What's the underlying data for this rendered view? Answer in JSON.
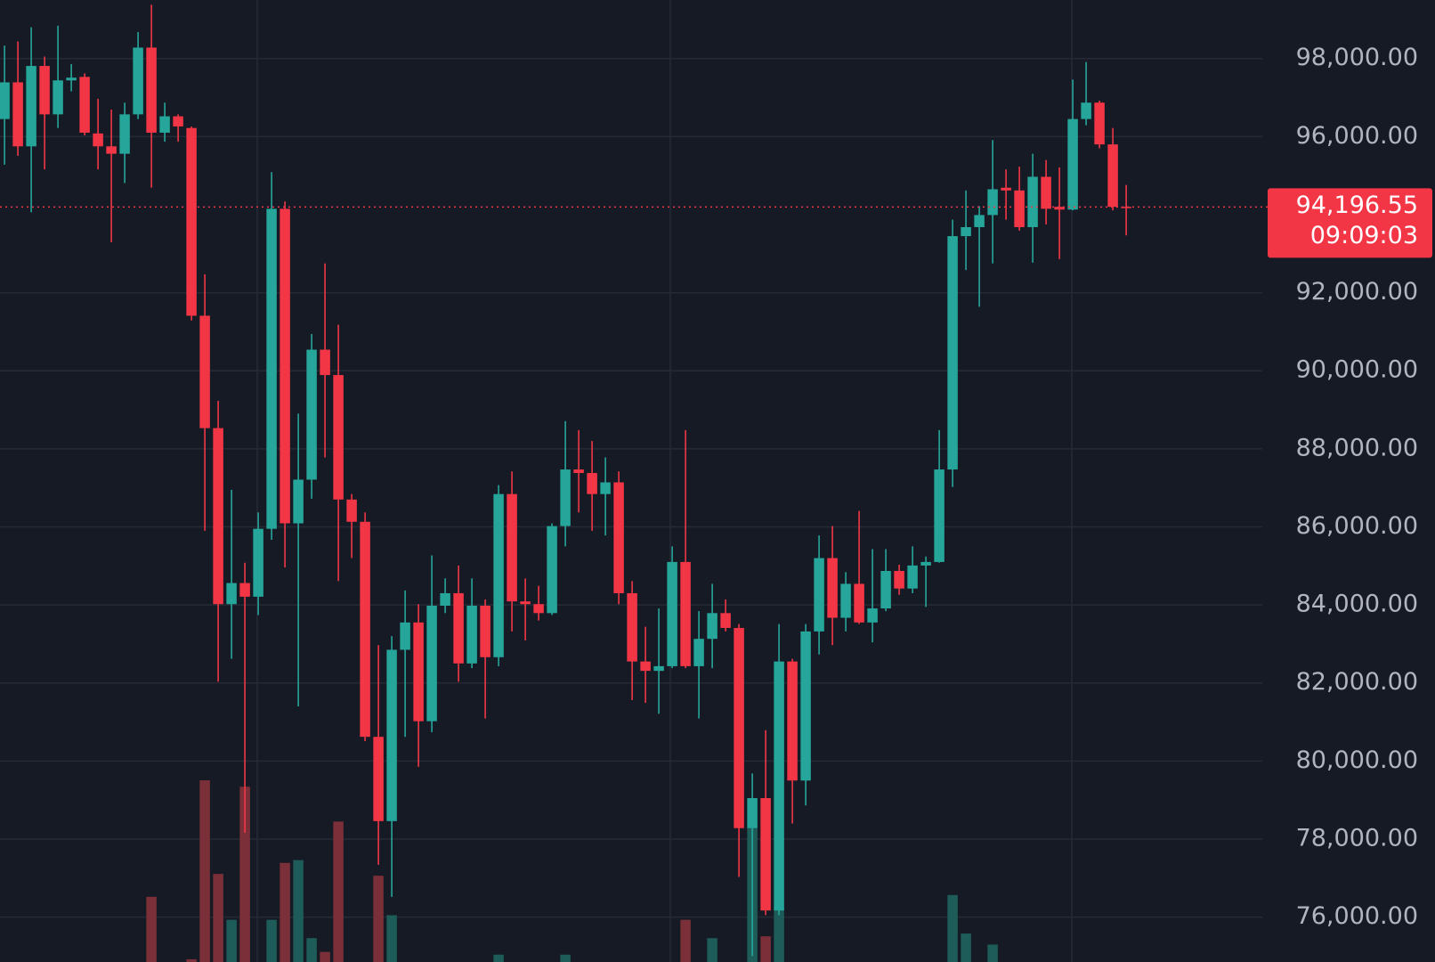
{
  "chart_data": {
    "type": "candlestick",
    "open": [
      96450,
      97390,
      95750,
      97810,
      96570,
      97440,
      97530,
      96080,
      95750,
      95560,
      96570,
      98280,
      96100,
      96520,
      96220,
      91410,
      88530,
      84020,
      84560,
      84210,
      85950,
      94150,
      86090,
      87210,
      90540,
      89890,
      86700,
      86130,
      80620,
      78460,
      82850,
      83550,
      81020,
      83980,
      84300,
      82500,
      83980,
      82660,
      86840,
      84090,
      84020,
      83790,
      86020,
      87470,
      87380,
      86840,
      87140,
      84300,
      82550,
      82310,
      82430,
      85100,
      82430,
      83130,
      83790,
      83410,
      78280,
      79050,
      76170,
      82550,
      79500,
      83320,
      85200,
      83670,
      84540,
      83550,
      83910,
      84870,
      84420,
      85010,
      85100,
      87470,
      93450,
      93680,
      93990,
      94690,
      94620,
      93680,
      94970,
      94200,
      94130,
      96450,
      96870,
      95800,
      94200
    ],
    "high": [
      98330,
      98440,
      98800,
      98050,
      98840,
      97860,
      97620,
      96970,
      96690,
      96870,
      98680,
      99380,
      96870,
      96570,
      96260,
      92470,
      89230,
      86950,
      85080,
      86370,
      95090,
      94340,
      88900,
      90940,
      92750,
      91180,
      86840,
      86370,
      82970,
      83200,
      84370,
      84020,
      85270,
      84680,
      85010,
      84680,
      84140,
      87070,
      87420,
      84680,
      84490,
      86090,
      88710,
      88480,
      88200,
      87780,
      87420,
      84610,
      83440,
      83910,
      85500,
      88480,
      83840,
      84540,
      84140,
      83510,
      79680,
      80790,
      83510,
      82620,
      83510,
      85780,
      86020,
      84840,
      86410,
      85430,
      85430,
      85030,
      85500,
      85240,
      88480,
      93870,
      94620,
      94220,
      95910,
      95160,
      95230,
      95560,
      95400,
      95210,
      97460,
      97910,
      96920,
      96220,
      94760
    ],
    "low": [
      95280,
      95510,
      94060,
      95160,
      96220,
      97160,
      96030,
      95160,
      93290,
      94810,
      96450,
      94690,
      95870,
      95870,
      91290,
      85900,
      82030,
      82620,
      78160,
      83740,
      85670,
      84960,
      81400,
      86720,
      87780,
      84610,
      85200,
      80510,
      77340,
      76520,
      80620,
      79850,
      80740,
      83790,
      82030,
      82380,
      81090,
      82430,
      83320,
      83090,
      83600,
      83740,
      85500,
      86370,
      85900,
      85780,
      84020,
      81560,
      81490,
      81210,
      82380,
      82380,
      81090,
      82380,
      83320,
      77030,
      75000,
      76050,
      76050,
      78400,
      78860,
      82730,
      82970,
      83320,
      83510,
      83040,
      83840,
      84260,
      84300,
      83950,
      85080,
      87020,
      92580,
      91640,
      92750,
      93870,
      93590,
      92770,
      93750,
      92860,
      94110,
      96290,
      95700,
      94110,
      93470
    ],
    "close": [
      97390,
      95750,
      97810,
      96570,
      97440,
      97510,
      96100,
      95750,
      95560,
      96570,
      98280,
      96100,
      96520,
      96260,
      91410,
      88530,
      84020,
      84560,
      84210,
      85950,
      94150,
      86090,
      87210,
      90540,
      89890,
      86700,
      86130,
      80620,
      78460,
      82850,
      83550,
      81020,
      83980,
      84300,
      82500,
      83980,
      82660,
      86840,
      84090,
      84020,
      83790,
      86020,
      87470,
      87380,
      86840,
      87140,
      84300,
      82550,
      82310,
      82430,
      85100,
      82430,
      83130,
      83790,
      83410,
      78280,
      79050,
      76170,
      82550,
      79500,
      83320,
      85200,
      83670,
      84540,
      83550,
      83910,
      84870,
      84420,
      85010,
      85100,
      87470,
      93450,
      93680,
      93990,
      94650,
      94620,
      93680,
      94970,
      94150,
      94130,
      96450,
      96870,
      95800,
      94200,
      94196.55
    ],
    "volume": [
      null,
      null,
      null,
      null,
      null,
      null,
      null,
      null,
      null,
      null,
      null,
      71,
      null,
      null,
      3,
      198,
      96,
      46,
      191,
      null,
      46,
      108,
      111,
      26,
      11,
      153,
      null,
      null,
      94,
      51,
      null,
      null,
      null,
      null,
      null,
      null,
      null,
      8,
      null,
      null,
      null,
      null,
      8,
      null,
      null,
      null,
      null,
      null,
      null,
      null,
      null,
      46,
      null,
      26,
      null,
      null,
      146,
      28,
      59,
      null,
      null,
      null,
      null,
      null,
      null,
      null,
      null,
      null,
      null,
      null,
      null,
      73,
      31,
      null,
      19,
      null,
      null,
      null,
      null,
      null,
      null,
      null,
      null,
      null,
      null
    ],
    "up_color": "#26a69a",
    "down_color": "#f23645",
    "volume_up_color": "#1d5c58",
    "volume_down_color": "#7b2f38",
    "ylim": [
      74850,
      99500
    ],
    "yticks": [
      {
        "value": 76000,
        "label": "76,000.00"
      },
      {
        "value": 78000,
        "label": "78,000.00"
      },
      {
        "value": 80000,
        "label": "80,000.00"
      },
      {
        "value": 82000,
        "label": "82,000.00"
      },
      {
        "value": 84000,
        "label": "84,000.00"
      },
      {
        "value": 86000,
        "label": "86,000.00"
      },
      {
        "value": 88000,
        "label": "88,000.00"
      },
      {
        "value": 90000,
        "label": "90,000.00"
      },
      {
        "value": 92000,
        "label": "92,000.00"
      },
      {
        "value": 96000,
        "label": "96,000.00"
      },
      {
        "value": 98000,
        "label": "98,000.00"
      }
    ],
    "grid": true,
    "last_price": {
      "value": 94196.55,
      "label": "94,196.55"
    },
    "countdown": "09:09:03"
  }
}
